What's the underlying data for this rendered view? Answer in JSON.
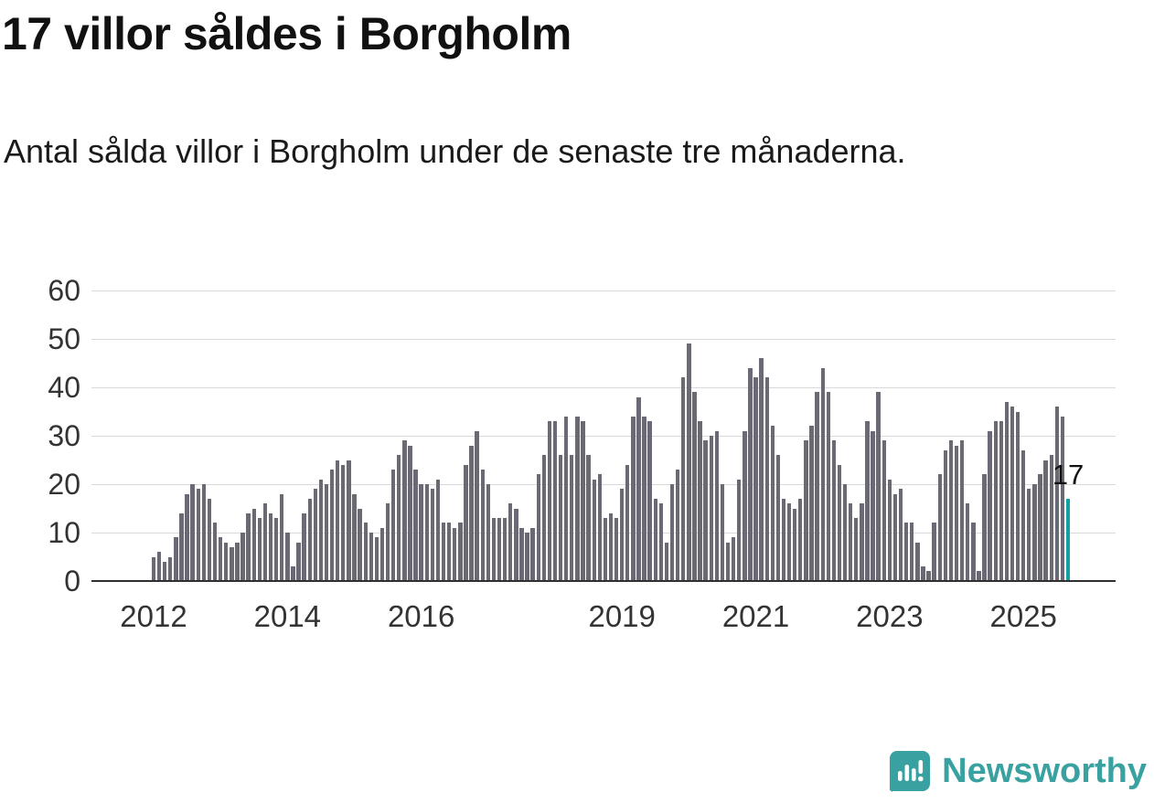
{
  "header": {
    "title": "17 villor såldes i Borgholm",
    "subtitle": "Antal sålda villor i Borgholm under de senaste tre månaderna."
  },
  "footer": {
    "brand": "Newsworthy"
  },
  "chart_data": {
    "type": "bar",
    "title": "17 villor såldes i Borgholm",
    "subtitle": "Antal sålda villor i Borgholm under de senaste tre månaderna.",
    "xlabel": "",
    "ylabel": "",
    "ylim": [
      0,
      60
    ],
    "yticks": [
      0,
      10,
      20,
      30,
      40,
      50,
      60
    ],
    "xticks": [
      2012,
      2014,
      2016,
      2019,
      2021,
      2023,
      2025
    ],
    "x_start": {
      "year": 2012,
      "month": 1
    },
    "frequency": "monthly",
    "grid": "horizontal",
    "values": [
      5,
      6,
      4,
      5,
      9,
      14,
      18,
      20,
      19,
      20,
      17,
      12,
      9,
      8,
      7,
      8,
      10,
      14,
      15,
      13,
      16,
      14,
      13,
      18,
      10,
      3,
      8,
      14,
      17,
      19,
      21,
      20,
      23,
      25,
      24,
      25,
      18,
      15,
      12,
      10,
      9,
      11,
      16,
      23,
      26,
      29,
      28,
      23,
      20,
      20,
      19,
      21,
      12,
      12,
      11,
      12,
      24,
      28,
      31,
      23,
      20,
      13,
      13,
      13,
      16,
      15,
      11,
      10,
      11,
      22,
      26,
      33,
      33,
      26,
      34,
      26,
      34,
      33,
      26,
      21,
      22,
      13,
      14,
      13,
      19,
      24,
      34,
      38,
      34,
      33,
      17,
      16,
      8,
      20,
      23,
      42,
      49,
      39,
      33,
      29,
      30,
      31,
      20,
      8,
      9,
      21,
      31,
      44,
      42,
      46,
      42,
      32,
      26,
      17,
      16,
      15,
      17,
      29,
      32,
      39,
      44,
      39,
      29,
      24,
      20,
      16,
      13,
      16,
      33,
      31,
      39,
      29,
      21,
      18,
      19,
      12,
      12,
      8,
      3,
      2,
      12,
      22,
      27,
      29,
      28,
      29,
      16,
      12,
      2,
      22,
      31,
      33,
      33,
      37,
      36,
      35,
      27,
      19,
      20,
      22,
      25,
      26,
      36,
      34,
      17
    ],
    "highlight": {
      "index": 164,
      "value": 17,
      "label": "17"
    },
    "colors": {
      "bar": "#6b6974",
      "highlight": "#10a3a6",
      "grid": "#d9d9d9",
      "axis": "#2f2f2f",
      "text": "#1a1a1a",
      "brand": "#3aa1a1"
    }
  }
}
